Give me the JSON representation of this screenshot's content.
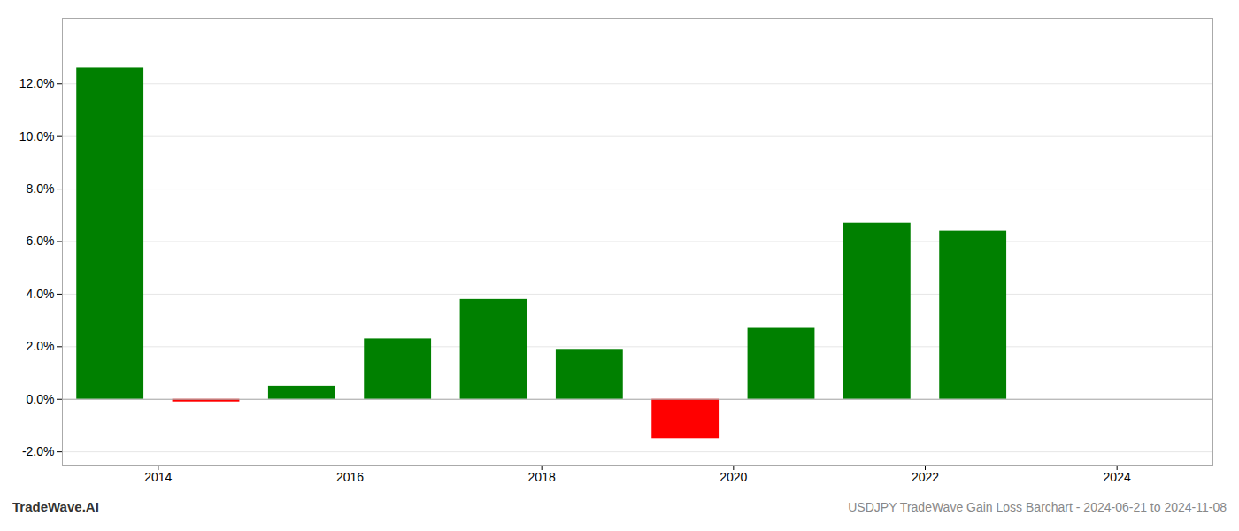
{
  "chart_data": {
    "type": "bar",
    "title": "USDJPY TradeWave Gain Loss Barchart - 2024-06-21 to 2024-11-08",
    "annotations": [
      "TradeWave.AI"
    ],
    "x": [
      2013.5,
      2014.5,
      2015.5,
      2016.5,
      2017.5,
      2018.5,
      2019.5,
      2020.5,
      2021.5,
      2022.5
    ],
    "values": [
      0.126,
      -0.001,
      0.005,
      0.023,
      0.038,
      0.019,
      -0.015,
      0.027,
      0.067,
      0.064
    ],
    "colors": [
      "#008000",
      "#ff0000",
      "#008000",
      "#008000",
      "#008000",
      "#008000",
      "#ff0000",
      "#008000",
      "#008000",
      "#008000"
    ],
    "xlim": [
      2013.0,
      2025.0
    ],
    "xticks": [
      2014,
      2016,
      2018,
      2020,
      2022,
      2024
    ],
    "ylim": [
      -0.025,
      0.145
    ],
    "yticks": [
      {
        "value": -0.02,
        "label": "-2.0%"
      },
      {
        "value": 0.0,
        "label": "0.0%"
      },
      {
        "value": 0.02,
        "label": "2.0%"
      },
      {
        "value": 0.04,
        "label": "4.0%"
      },
      {
        "value": 0.06,
        "label": "6.0%"
      },
      {
        "value": 0.08,
        "label": "8.0%"
      },
      {
        "value": 0.1,
        "label": "10.0%"
      },
      {
        "value": 0.12,
        "label": "12.0%"
      }
    ],
    "grid": true
  }
}
